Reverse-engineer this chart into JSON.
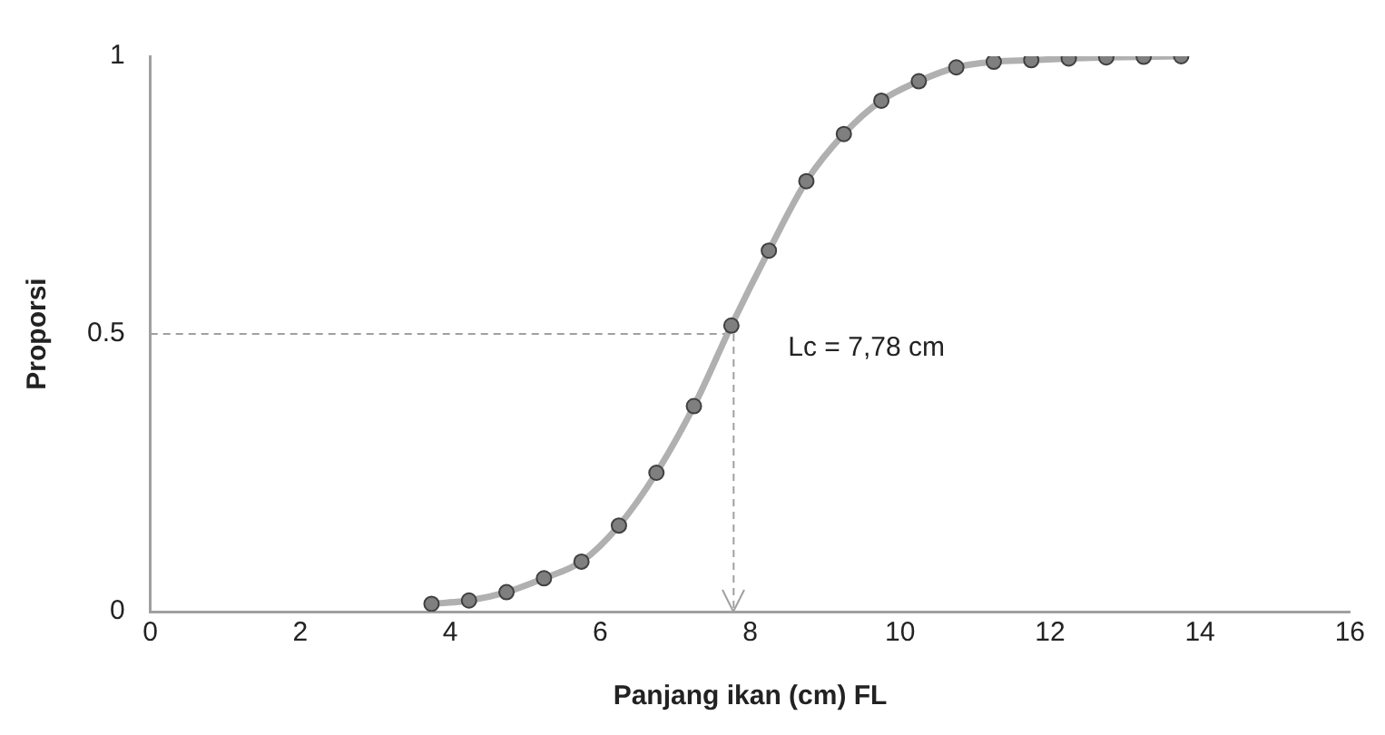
{
  "chart_data": {
    "type": "line",
    "xlabel": "Panjang ikan (cm) FL",
    "ylabel": "Proporsi",
    "x": [
      3.75,
      4.25,
      4.75,
      5.25,
      5.75,
      6.25,
      6.75,
      7.25,
      7.75,
      8.25,
      8.75,
      9.25,
      9.75,
      10.25,
      10.75,
      11.25,
      11.75,
      12.25,
      12.75,
      13.25,
      13.75
    ],
    "series": [
      {
        "color": "#b0b0b0",
        "values": [
          0.014,
          0.02,
          0.035,
          0.06,
          0.09,
          0.155,
          0.25,
          0.37,
          0.515,
          0.65,
          0.775,
          0.86,
          0.92,
          0.955,
          0.98,
          0.99,
          0.993,
          0.996,
          0.998,
          0.999,
          1.0
        ]
      }
    ],
    "xlim": [
      0,
      16
    ],
    "xticks": [
      0,
      2,
      4,
      6,
      8,
      10,
      12,
      14,
      16
    ],
    "ylim": [
      0,
      1
    ],
    "yticks": [
      0,
      0.5,
      1
    ],
    "grid": false,
    "legend": false,
    "marker": "circle",
    "line_style": "solid",
    "ref_lines": [
      {
        "axis": "y",
        "value": 0.5,
        "color": "#a0a0a0",
        "line_style": "dashed"
      },
      {
        "axis": "x",
        "value": 7.78,
        "label": "Lc = 7,78 cm",
        "color": "#a0a0a0",
        "line_style": "dashed"
      }
    ]
  }
}
